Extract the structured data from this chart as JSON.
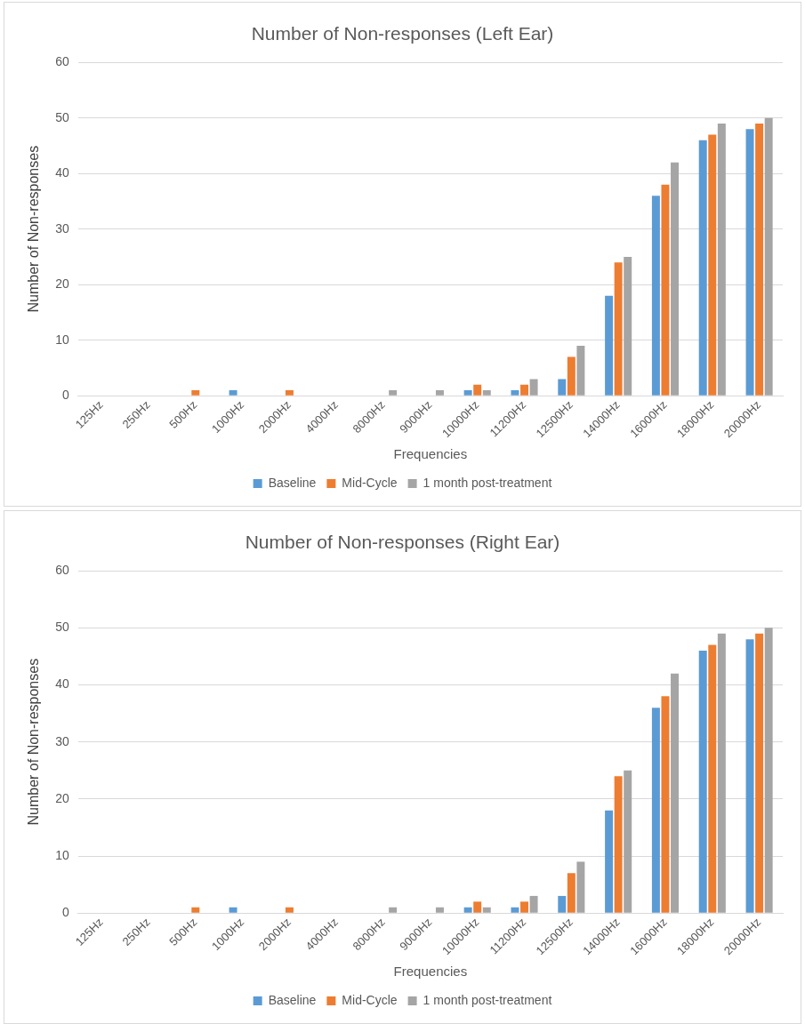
{
  "chart_data": [
    {
      "type": "bar",
      "title": "Number of Non-responses (Left Ear)",
      "xlabel": "Frequencies",
      "ylabel": "Number of Non-responses",
      "categories": [
        "125Hz",
        "250Hz",
        "500Hz",
        "1000Hz",
        "2000Hz",
        "4000Hz",
        "8000Hz",
        "9000Hz",
        "10000Hz",
        "11200Hz",
        "12500Hz",
        "14000Hz",
        "16000Hz",
        "18000Hz",
        "20000Hz"
      ],
      "series": [
        {
          "name": "Baseline",
          "color": "#5b9bd5",
          "values": [
            0,
            0,
            0,
            1,
            0,
            0,
            0,
            0,
            1,
            1,
            3,
            18,
            36,
            46,
            48
          ]
        },
        {
          "name": "Mid-Cycle",
          "color": "#ed7d31",
          "values": [
            0,
            0,
            1,
            0,
            1,
            0,
            0,
            0,
            2,
            2,
            7,
            24,
            38,
            47,
            49
          ]
        },
        {
          "name": "1 month post-treatment",
          "color": "#a5a5a5",
          "values": [
            0,
            0,
            0,
            0,
            0,
            0,
            1,
            1,
            1,
            3,
            9,
            25,
            42,
            49,
            50
          ]
        }
      ],
      "ylim": [
        0,
        60
      ],
      "yticks": [
        0,
        10,
        20,
        30,
        40,
        50,
        60
      ],
      "grid": "y",
      "legend": "bottom"
    },
    {
      "type": "bar",
      "title": "Number of Non-responses (Right Ear)",
      "xlabel": "Frequencies",
      "ylabel": "Number of Non-responses",
      "categories": [
        "125Hz",
        "250Hz",
        "500Hz",
        "1000Hz",
        "2000Hz",
        "4000Hz",
        "8000Hz",
        "9000Hz",
        "10000Hz",
        "11200Hz",
        "12500Hz",
        "14000Hz",
        "16000Hz",
        "18000Hz",
        "20000Hz"
      ],
      "series": [
        {
          "name": "Baseline",
          "color": "#5b9bd5",
          "values": [
            0,
            0,
            0,
            1,
            0,
            0,
            0,
            0,
            1,
            1,
            3,
            18,
            36,
            46,
            48
          ]
        },
        {
          "name": "Mid-Cycle",
          "color": "#ed7d31",
          "values": [
            0,
            0,
            1,
            0,
            1,
            0,
            0,
            0,
            2,
            2,
            7,
            24,
            38,
            47,
            49
          ]
        },
        {
          "name": "1 month post-treatment",
          "color": "#a5a5a5",
          "values": [
            0,
            0,
            0,
            0,
            0,
            0,
            1,
            1,
            1,
            3,
            9,
            25,
            42,
            49,
            50
          ]
        }
      ],
      "ylim": [
        0,
        60
      ],
      "yticks": [
        0,
        10,
        20,
        30,
        40,
        50,
        60
      ],
      "grid": "y",
      "legend": "bottom"
    }
  ]
}
